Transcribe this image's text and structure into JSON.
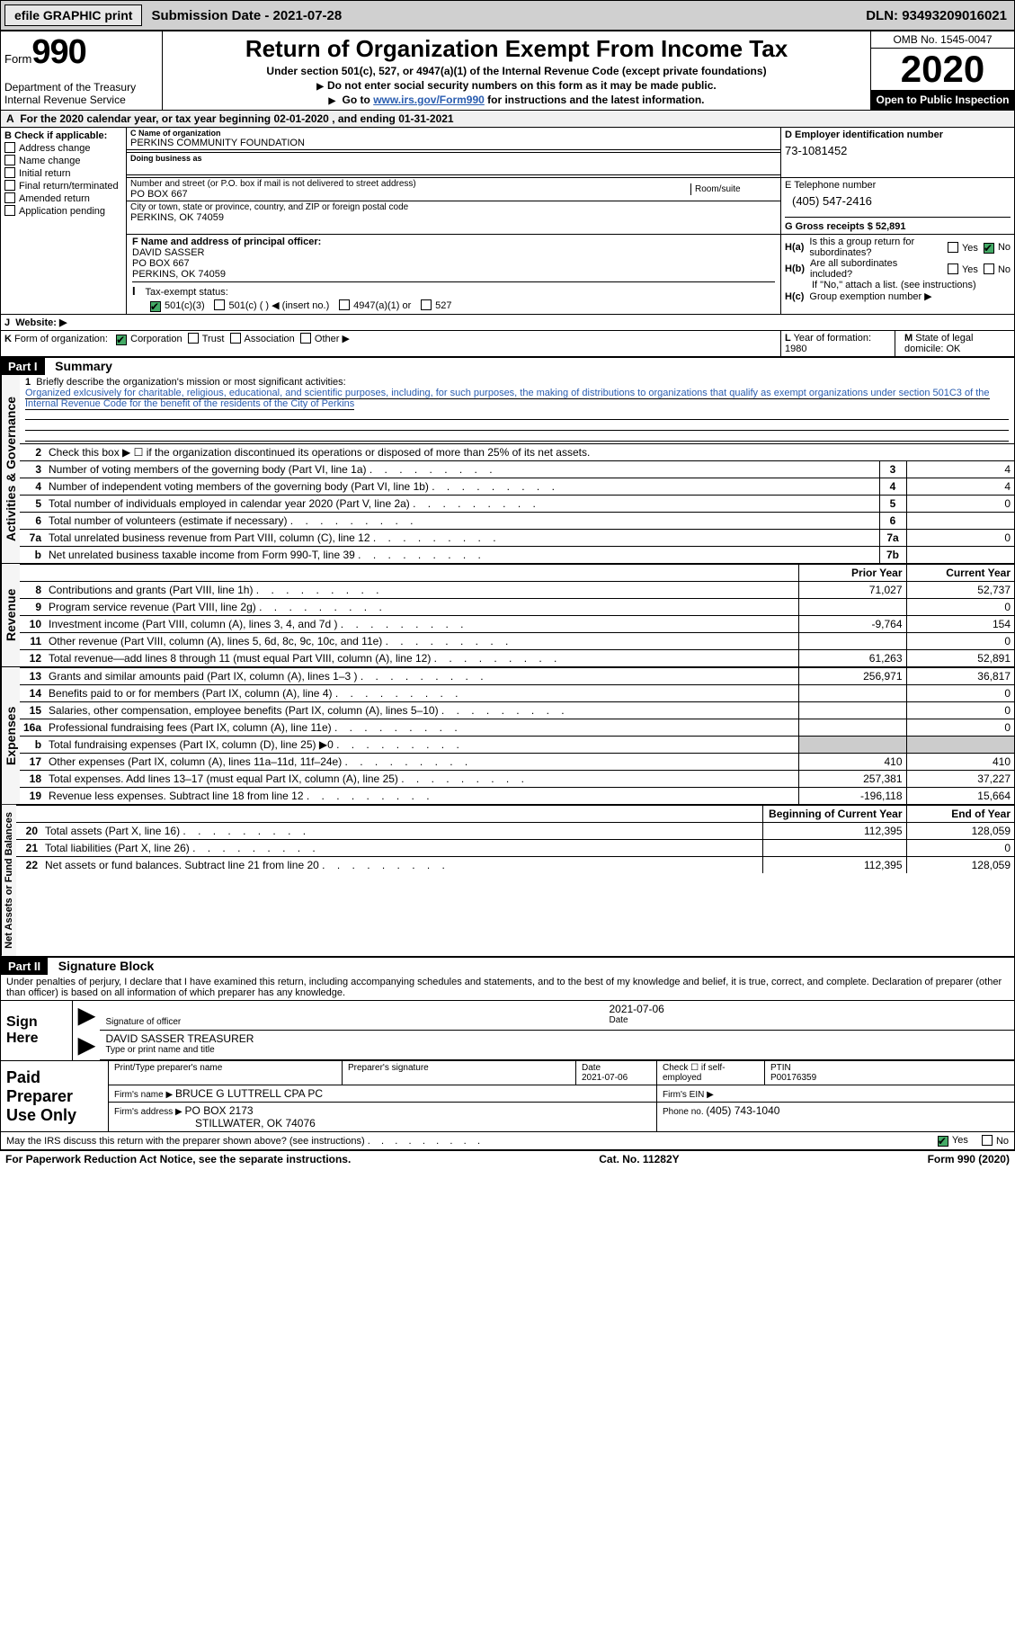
{
  "topbar": {
    "efile": "efile GRAPHIC print",
    "submission_label": "Submission Date - ",
    "submission_date": "2021-07-28",
    "dln_label": "DLN: ",
    "dln": "93493209016021"
  },
  "header": {
    "form_word": "Form",
    "form_no": "990",
    "dept": "Department of the Treasury\nInternal Revenue Service",
    "title": "Return of Organization Exempt From Income Tax",
    "subtitle": "Under section 501(c), 527, or 4947(a)(1) of the Internal Revenue Code (except private foundations)",
    "instr1": "Do not enter social security numbers on this form as it may be made public.",
    "instr2_pre": "Go to ",
    "instr2_link": "www.irs.gov/Form990",
    "instr2_post": " for instructions and the latest information.",
    "omb": "OMB No. 1545-0047",
    "year": "2020",
    "inspect": "Open to Public Inspection"
  },
  "period": {
    "text_a": "For the 2020 calendar year, or tax year beginning ",
    "begin": "02-01-2020",
    "text_b": " , and ending ",
    "end": "01-31-2021",
    "prefix": "A"
  },
  "boxB": {
    "title": "B Check if applicable:",
    "items": [
      "Address change",
      "Name change",
      "Initial return",
      "Final return/terminated",
      "Amended return",
      "Application pending"
    ]
  },
  "boxC": {
    "label": "C Name of organization",
    "name": "PERKINS COMMUNITY FOUNDATION",
    "dba_label": "Doing business as",
    "dba": "",
    "street_label": "Number and street (or P.O. box if mail is not delivered to street address)",
    "room_label": "Room/suite",
    "street": "PO BOX 667",
    "city_label": "City or town, state or province, country, and ZIP or foreign postal code",
    "city": "PERKINS, OK  74059"
  },
  "boxD": {
    "label": "D Employer identification number",
    "value": "73-1081452"
  },
  "boxE": {
    "label": "E Telephone number",
    "value": "(405) 547-2416"
  },
  "boxG": {
    "label": "G Gross receipts $ ",
    "value": "52,891"
  },
  "boxF": {
    "label": "F  Name and address of principal officer:",
    "lines": [
      "DAVID SASSER",
      "PO BOX 667",
      "PERKINS, OK  74059"
    ]
  },
  "boxH": {
    "a_label": "H(a)",
    "a_text": "Is this a group return for subordinates?",
    "a_yes": "Yes",
    "a_no": "No",
    "a_checked": "No",
    "b_label": "H(b)",
    "b_text": "Are all subordinates included?",
    "b_yes": "Yes",
    "b_no": "No",
    "b_note": "If \"No,\" attach a list. (see instructions)",
    "c_label": "H(c)",
    "c_text": "Group exemption number ▶"
  },
  "boxI": {
    "label": "I",
    "text": "Tax-exempt status:",
    "opts": [
      "501(c)(3)",
      "501(c) (  ) ◀ (insert no.)",
      "4947(a)(1) or",
      "527"
    ],
    "checked": 0
  },
  "boxJ": {
    "label": "J",
    "text": "Website: ▶"
  },
  "boxK": {
    "label": "K",
    "text": "Form of organization:",
    "opts": [
      "Corporation",
      "Trust",
      "Association",
      "Other ▶"
    ],
    "checked": 0
  },
  "boxL": {
    "label": "L",
    "text": "Year of formation: ",
    "value": "1980"
  },
  "boxM": {
    "label": "M",
    "text": "State of legal domicile: ",
    "value": "OK"
  },
  "partI": {
    "hdr": "Part I",
    "title": "Summary",
    "q1_label": "1",
    "q1_text": "Briefly describe the organization's mission or most significant activities:",
    "mission": "Organized exlcusively for charitable, religious, educational, and scientific purposes, including, for such purposes, the making of distributions to organizations that qualify as exempt organizations under section 501C3 of the Internal Revenue Code for the benefit of the residents of the City of Perkins",
    "q2_label": "2",
    "q2_text": "Check this box ▶ ☐  if the organization discontinued its operations or disposed of more than 25% of its net assets.",
    "side_ag": "Activities & Governance",
    "side_rev": "Revenue",
    "side_exp": "Expenses",
    "side_na": "Net Assets or Fund Balances",
    "rows_ag": [
      {
        "n": "3",
        "t": "Number of voting members of the governing body (Part VI, line 1a)",
        "k": "3",
        "v": "4"
      },
      {
        "n": "4",
        "t": "Number of independent voting members of the governing body (Part VI, line 1b)",
        "k": "4",
        "v": "4"
      },
      {
        "n": "5",
        "t": "Total number of individuals employed in calendar year 2020 (Part V, line 2a)",
        "k": "5",
        "v": "0"
      },
      {
        "n": "6",
        "t": "Total number of volunteers (estimate if necessary)",
        "k": "6",
        "v": ""
      },
      {
        "n": "7a",
        "t": "Total unrelated business revenue from Part VIII, column (C), line 12",
        "k": "7a",
        "v": "0"
      },
      {
        "n": "b",
        "t": "Net unrelated business taxable income from Form 990-T, line 39",
        "k": "7b",
        "v": ""
      }
    ],
    "hdr_prior": "Prior Year",
    "hdr_curr": "Current Year",
    "rows_rev": [
      {
        "n": "8",
        "t": "Contributions and grants (Part VIII, line 1h)",
        "p": "71,027",
        "c": "52,737"
      },
      {
        "n": "9",
        "t": "Program service revenue (Part VIII, line 2g)",
        "p": "",
        "c": "0"
      },
      {
        "n": "10",
        "t": "Investment income (Part VIII, column (A), lines 3, 4, and 7d )",
        "p": "-9,764",
        "c": "154"
      },
      {
        "n": "11",
        "t": "Other revenue (Part VIII, column (A), lines 5, 6d, 8c, 9c, 10c, and 11e)",
        "p": "",
        "c": "0"
      },
      {
        "n": "12",
        "t": "Total revenue—add lines 8 through 11 (must equal Part VIII, column (A), line 12)",
        "p": "61,263",
        "c": "52,891"
      }
    ],
    "rows_exp": [
      {
        "n": "13",
        "t": "Grants and similar amounts paid (Part IX, column (A), lines 1–3 )",
        "p": "256,971",
        "c": "36,817"
      },
      {
        "n": "14",
        "t": "Benefits paid to or for members (Part IX, column (A), line 4)",
        "p": "",
        "c": "0"
      },
      {
        "n": "15",
        "t": "Salaries, other compensation, employee benefits (Part IX, column (A), lines 5–10)",
        "p": "",
        "c": "0"
      },
      {
        "n": "16a",
        "t": "Professional fundraising fees (Part IX, column (A), line 11e)",
        "p": "",
        "c": "0"
      },
      {
        "n": "b",
        "t": "Total fundraising expenses (Part IX, column (D), line 25) ▶0",
        "p": "SHADE",
        "c": "SHADE"
      },
      {
        "n": "17",
        "t": "Other expenses (Part IX, column (A), lines 11a–11d, 11f–24e)",
        "p": "410",
        "c": "410"
      },
      {
        "n": "18",
        "t": "Total expenses. Add lines 13–17 (must equal Part IX, column (A), line 25)",
        "p": "257,381",
        "c": "37,227"
      },
      {
        "n": "19",
        "t": "Revenue less expenses. Subtract line 18 from line 12",
        "p": "-196,118",
        "c": "15,664"
      }
    ],
    "hdr_beg": "Beginning of Current Year",
    "hdr_end": "End of Year",
    "rows_na": [
      {
        "n": "20",
        "t": "Total assets (Part X, line 16)",
        "p": "112,395",
        "c": "128,059"
      },
      {
        "n": "21",
        "t": "Total liabilities (Part X, line 26)",
        "p": "",
        "c": "0"
      },
      {
        "n": "22",
        "t": "Net assets or fund balances. Subtract line 21 from line 20",
        "p": "112,395",
        "c": "128,059"
      }
    ]
  },
  "partII": {
    "hdr": "Part II",
    "title": "Signature Block",
    "decl": "Under penalties of perjury, I declare that I have examined this return, including accompanying schedules and statements, and to the best of my knowledge and belief, it is true, correct, and complete. Declaration of preparer (other than officer) is based on all information of which preparer has any knowledge.",
    "sign_here": "Sign Here",
    "sig_label": "Signature of officer",
    "date_label": "Date",
    "sig_date": "2021-07-06",
    "name_label": "Type or print name and title",
    "name": "DAVID SASSER TREASURER",
    "paid_hdr": "Paid Preparer Use Only",
    "col_prep": "Print/Type preparer's name",
    "col_sig": "Preparer's signature",
    "col_date": "Date",
    "col_self": "Check ☐ if self-employed",
    "col_ptin": "PTIN",
    "prep_date": "2021-07-06",
    "ptin": "P00176359",
    "firm_name_label": "Firm's name   ▶ ",
    "firm_name": "BRUCE G LUTTRELL CPA PC",
    "firm_ein_label": "Firm's EIN ▶",
    "firm_addr_label": "Firm's address ▶ ",
    "firm_addr": "PO BOX 2173",
    "firm_city": "STILLWATER, OK  74076",
    "phone_label": "Phone no. ",
    "phone": "(405) 743-1040",
    "discuss": "May the IRS discuss this return with the preparer shown above? (see instructions)",
    "discuss_yes": "Yes",
    "discuss_no": "No",
    "discuss_checked": "Yes"
  },
  "footer": {
    "left": "For Paperwork Reduction Act Notice, see the separate instructions.",
    "mid": "Cat. No. 11282Y",
    "right": "Form 990 (2020)"
  },
  "style": {
    "colors": {
      "checkbox_checked": "#4a6",
      "link": "#2a5db0",
      "topbar_bg": "#d0d0d0",
      "shade": "#cccccc"
    }
  }
}
